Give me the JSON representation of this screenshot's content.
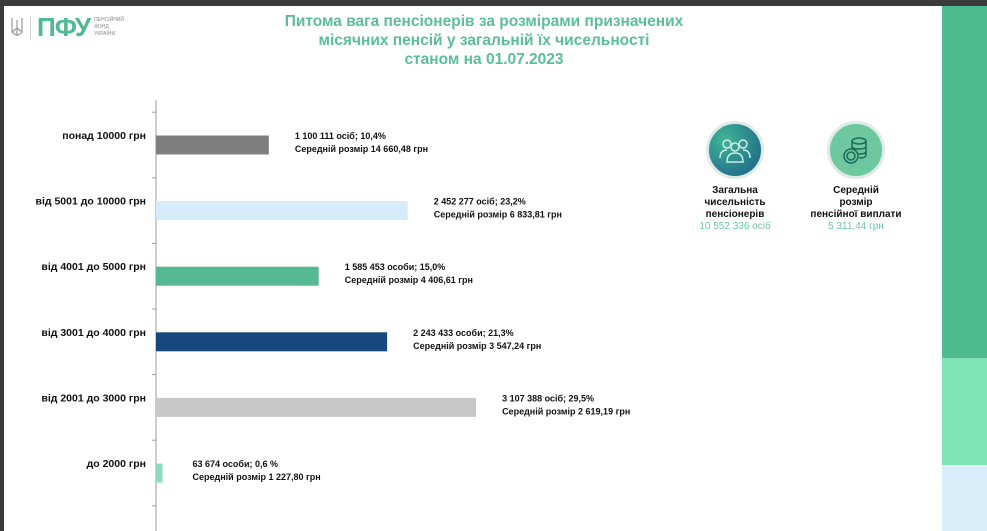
{
  "logo": {
    "text": "ПФУ",
    "subtitle": [
      "ПЕНСІЙНИЙ",
      "ФОНД",
      "УКРАЇНИ"
    ]
  },
  "title": [
    "Питома вага пенсіонерів за розмірами призначених",
    "місячних пенсій у загальній їх чисельності",
    "станом на 01.07.2023"
  ],
  "chart_data": {
    "type": "bar",
    "orientation": "horizontal",
    "unit": "%",
    "categories": [
      "понад 10000 грн",
      "від 5001 до 10000 грн",
      "від 4001 до 5000 грн",
      "від 3001 до 4000 грн",
      "від 2001 до 3000 грн",
      "до 2000 грн"
    ],
    "values": [
      10.4,
      23.2,
      15.0,
      21.3,
      29.5,
      0.6
    ],
    "colors": [
      "#7f7f7f",
      "#d6ecfa",
      "#55b994",
      "#17487d",
      "#c8c8c8",
      "#8fdcc0"
    ],
    "labels": [
      [
        "1 100 111 осіб;  10,4%",
        "Середній розмір 14 660,48 грн"
      ],
      [
        "2 452 277 осіб; 23,2%",
        "Середній розмір 6 833,81 грн"
      ],
      [
        "1 585 453 особи; 15,0%",
        "Середній розмір 4 406,61 грн"
      ],
      [
        "2 243 433 особи; 21,3%",
        "Середній розмір 3 547,24 грн"
      ],
      [
        "3 107 388 осіб; 29,5%",
        "Середній розмір 2 619,19 грн"
      ],
      [
        "63 674 особи; 0,6 %",
        "Середній розмір 1 227,80 грн"
      ]
    ]
  },
  "stats": [
    {
      "icon": "people-icon",
      "label": [
        "Загальна",
        "чисельність",
        "пенсіонерів"
      ],
      "value": "10 552 336 осіб"
    },
    {
      "icon": "coins-icon",
      "label": [
        "Середній",
        "розмір",
        "пенсійної виплати"
      ],
      "value": "5 311,44 грн"
    }
  ]
}
